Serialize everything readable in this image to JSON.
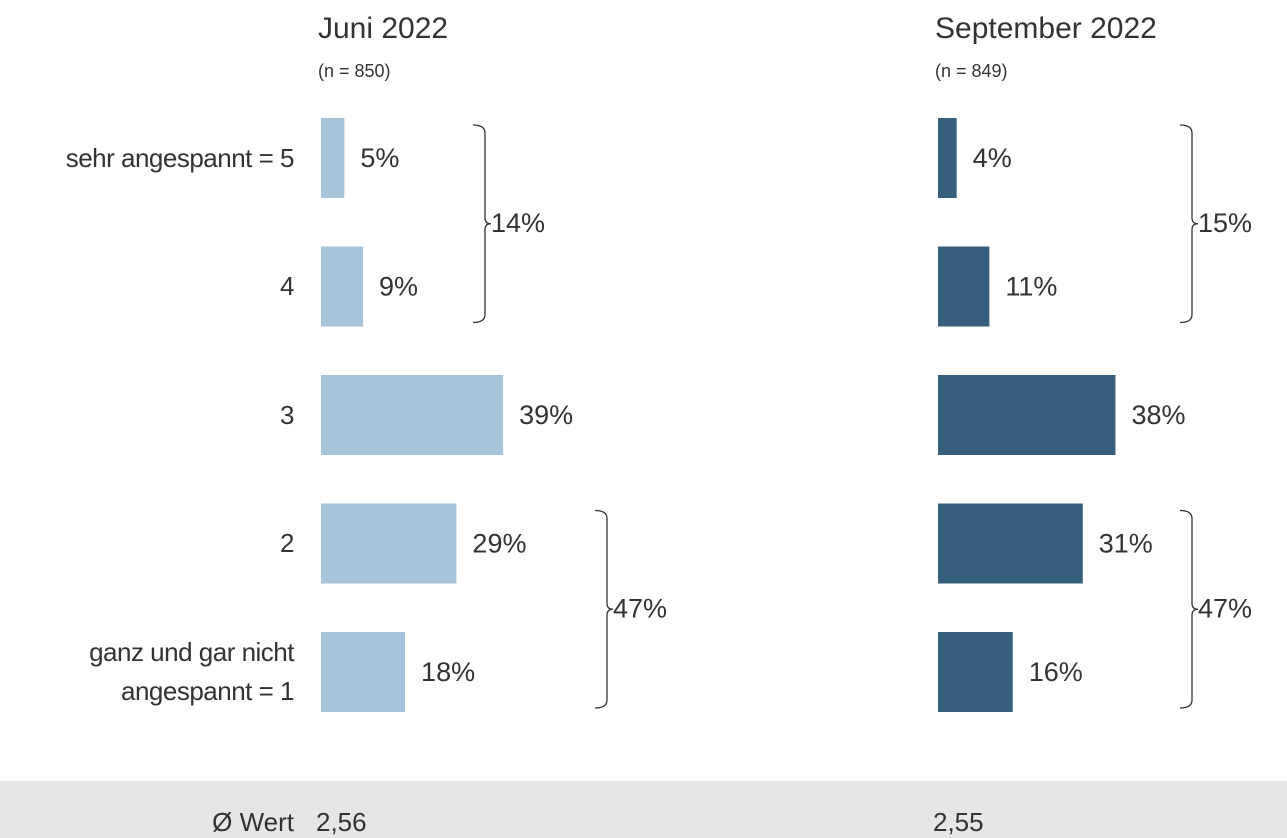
{
  "chart_data": [
    {
      "type": "bar",
      "orientation": "horizontal",
      "title": "Juni 2022",
      "subtitle": "(n = 850)",
      "categories": [
        "sehr angespannt = 5",
        "4",
        "3",
        "2",
        "ganz und gar nicht angespannt = 1"
      ],
      "values": [
        5,
        9,
        39,
        29,
        18
      ],
      "value_labels": [
        "5%",
        "9%",
        "39%",
        "29%",
        "18%"
      ],
      "color": "#a6c4da",
      "xlim": [
        0,
        100
      ],
      "groups": [
        {
          "value": 14,
          "label": "14%"
        },
        {
          "value": 47,
          "label": "47%"
        }
      ],
      "mean": "2,56"
    },
    {
      "type": "bar",
      "orientation": "horizontal",
      "title": "September 2022",
      "subtitle": "(n = 849)",
      "values": [
        4,
        11,
        38,
        31,
        16
      ],
      "value_labels": [
        "4%",
        "11%",
        "38%",
        "31%",
        "16%"
      ],
      "color": "#365e7d",
      "xlim": [
        0,
        100
      ],
      "groups": [
        {
          "value": 15,
          "label": "15%"
        },
        {
          "value": 47,
          "label": "47%"
        }
      ],
      "mean": "2,55"
    }
  ],
  "footer_label": "Ø Wert"
}
